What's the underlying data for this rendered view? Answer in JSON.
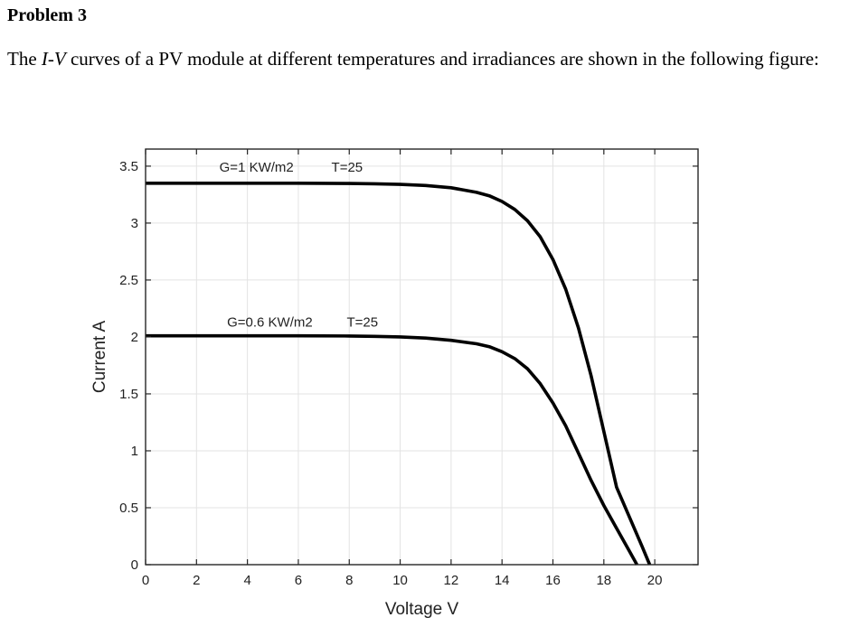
{
  "problem": {
    "title": "Problem 3",
    "text_before": "The ",
    "italic_var": "I-V",
    "text_after": " curves of a PV module at different temperatures and irradiances are shown in the following figure:"
  },
  "chart_data": {
    "type": "line",
    "xlabel": "Voltage V",
    "ylabel": "Current A",
    "xlim": [
      0,
      21.7
    ],
    "ylim": [
      0,
      3.65
    ],
    "xticks": [
      0,
      2,
      4,
      6,
      8,
      10,
      12,
      14,
      16,
      18,
      20
    ],
    "yticks": [
      0,
      0.5,
      1,
      1.5,
      2,
      2.5,
      3,
      3.5
    ],
    "grid": true,
    "series": [
      {
        "name": "G=1 KW/m2    T=25",
        "color": "#000000",
        "x": [
          0,
          2,
          4,
          6,
          8,
          9,
          10,
          11,
          12,
          13,
          13.5,
          14,
          14.5,
          15,
          15.5,
          16,
          16.5,
          17,
          17.5,
          18,
          18.5,
          19,
          19.5,
          19.8
        ],
        "y": [
          3.35,
          3.35,
          3.35,
          3.35,
          3.348,
          3.345,
          3.34,
          3.33,
          3.31,
          3.27,
          3.24,
          3.19,
          3.12,
          3.02,
          2.88,
          2.68,
          2.42,
          2.08,
          1.66,
          1.17,
          0.68,
          0.42,
          0.16,
          0
        ]
      },
      {
        "name": "G=0.6 KW/m2    T=25",
        "color": "#000000",
        "x": [
          0,
          2,
          4,
          6,
          8,
          9,
          10,
          11,
          12,
          13,
          13.5,
          14,
          14.5,
          15,
          15.5,
          16,
          16.5,
          17,
          17.5,
          18,
          18.5,
          19,
          19.3
        ],
        "y": [
          2.01,
          2.01,
          2.01,
          2.01,
          2.008,
          2.005,
          2.0,
          1.99,
          1.97,
          1.94,
          1.915,
          1.87,
          1.81,
          1.72,
          1.59,
          1.42,
          1.22,
          0.98,
          0.74,
          0.52,
          0.32,
          0.12,
          0
        ]
      }
    ],
    "annotations": [
      {
        "text": "G=1 KW/m2",
        "x": 2.9,
        "y": 3.45
      },
      {
        "text": "T=25",
        "x": 7.3,
        "y": 3.45
      },
      {
        "text": "G=0.6 KW/m2",
        "x": 3.2,
        "y": 2.09
      },
      {
        "text": "T=25",
        "x": 7.9,
        "y": 2.09
      }
    ]
  }
}
